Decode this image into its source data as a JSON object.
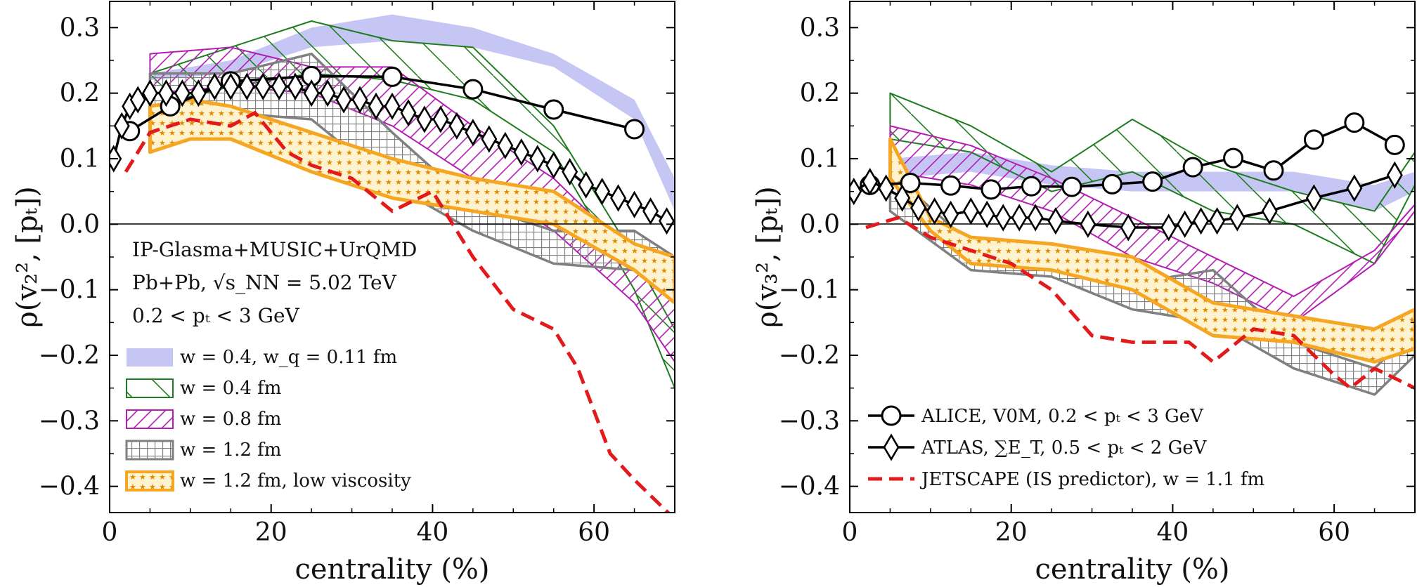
{
  "chart_data": [
    {
      "type": "area",
      "panel": "left",
      "xlabel": "centrality (%)",
      "ylabel": "ρ(v₂², [pₜ])",
      "xlim": [
        0,
        70
      ],
      "ylim": [
        -0.44,
        0.34
      ],
      "xticks": [
        0,
        20,
        40,
        60
      ],
      "yticks": [
        -0.4,
        -0.3,
        -0.2,
        -0.1,
        0.0,
        0.1,
        0.2,
        0.3
      ],
      "annotations": [
        "IP-Glasma+MUSIC+UrQMD",
        "Pb+Pb, √s_NN = 5.02 TeV",
        "0.2 < pₜ < 3 GeV"
      ],
      "legend_position": "lower-left",
      "series": [
        {
          "name": "w = 0.4, w_q = 0.11 fm",
          "kind": "band",
          "color": "#b3b3f2",
          "x": [
            5,
            15,
            25,
            35,
            45,
            55,
            65,
            70
          ],
          "lower": [
            0.22,
            0.23,
            0.27,
            0.28,
            0.27,
            0.24,
            0.16,
            0.02
          ],
          "upper": [
            0.23,
            0.25,
            0.3,
            0.32,
            0.3,
            0.26,
            0.19,
            0.07
          ]
        },
        {
          "name": "w = 0.4 fm",
          "kind": "band",
          "color": "#1e7d1e",
          "x": [
            5,
            15,
            25,
            35,
            45,
            55,
            65,
            70
          ],
          "lower": [
            0.18,
            0.21,
            0.23,
            0.22,
            0.19,
            0.11,
            -0.1,
            -0.25
          ],
          "upper": [
            0.23,
            0.27,
            0.31,
            0.28,
            0.27,
            0.15,
            -0.05,
            -0.16
          ]
        },
        {
          "name": "w = 0.8 fm",
          "kind": "band",
          "color": "#b31db3",
          "x": [
            5,
            15,
            25,
            35,
            45,
            55,
            65,
            70
          ],
          "lower": [
            0.2,
            0.21,
            0.2,
            0.15,
            0.07,
            -0.01,
            -0.12,
            -0.21
          ],
          "upper": [
            0.26,
            0.27,
            0.24,
            0.24,
            0.15,
            0.07,
            -0.05,
            -0.12
          ]
        },
        {
          "name": "w = 1.2 fm",
          "kind": "band",
          "color": "#808080",
          "x": [
            5,
            15,
            25,
            35,
            45,
            55,
            65,
            70
          ],
          "lower": [
            0.18,
            0.17,
            0.16,
            0.06,
            -0.01,
            -0.06,
            -0.07,
            -0.11
          ],
          "upper": [
            0.23,
            0.23,
            0.26,
            0.14,
            0.03,
            -0.01,
            -0.01,
            -0.05
          ]
        },
        {
          "name": "w = 1.2 fm, low viscosity",
          "kind": "band",
          "color": "#f5a623",
          "x": [
            5,
            10,
            15,
            25,
            35,
            45,
            55,
            65,
            70
          ],
          "lower": [
            0.11,
            0.13,
            0.13,
            0.08,
            0.04,
            0.02,
            0.0,
            -0.07,
            -0.12
          ],
          "upper": [
            0.18,
            0.19,
            0.18,
            0.14,
            0.1,
            0.07,
            0.05,
            -0.03,
            -0.05
          ]
        },
        {
          "name": "ALICE, V0M, 0.2 < pₜ < 3 GeV",
          "kind": "line-circle",
          "color": "#000000",
          "x": [
            2.5,
            7.5,
            15,
            25,
            35,
            45,
            55,
            65
          ],
          "y": [
            0.142,
            0.18,
            0.218,
            0.226,
            0.225,
            0.206,
            0.175,
            0.145
          ]
        },
        {
          "name": "ATLAS, ∑E_T, 0.5 < pₜ < 2 GeV",
          "kind": "line-diamond",
          "color": "#000000",
          "x": [
            0.5,
            1.5,
            2.5,
            3.5,
            5,
            7,
            9,
            11,
            13,
            15,
            17,
            19,
            21,
            23,
            25,
            27,
            29,
            31,
            33,
            35,
            37,
            39,
            41,
            43,
            45,
            47,
            49,
            51,
            53,
            55,
            57,
            59,
            61,
            63,
            65,
            67,
            69
          ],
          "y": [
            0.1,
            0.15,
            0.18,
            0.19,
            0.2,
            0.2,
            0.2,
            0.2,
            0.21,
            0.21,
            0.21,
            0.21,
            0.21,
            0.21,
            0.2,
            0.2,
            0.19,
            0.19,
            0.18,
            0.18,
            0.17,
            0.16,
            0.16,
            0.15,
            0.14,
            0.13,
            0.12,
            0.11,
            0.1,
            0.09,
            0.08,
            0.06,
            0.05,
            0.04,
            0.03,
            0.02,
            0.005
          ]
        },
        {
          "name": "JETSCAPE (IS predictor), w = 1.1 fm",
          "kind": "dashed",
          "color": "#e31a1c",
          "x": [
            2,
            5,
            10,
            15,
            18,
            22,
            25,
            30,
            35,
            40,
            45,
            50,
            55,
            58,
            62,
            65,
            70
          ],
          "y": [
            0.08,
            0.14,
            0.16,
            0.15,
            0.17,
            0.11,
            0.09,
            0.07,
            0.02,
            0.05,
            -0.05,
            -0.13,
            -0.16,
            -0.22,
            -0.35,
            -0.39,
            -0.45
          ]
        }
      ]
    },
    {
      "type": "area",
      "panel": "right",
      "xlabel": "centrality (%)",
      "ylabel": "ρ(v₃², [pₜ])",
      "xlim": [
        0,
        70
      ],
      "ylim": [
        -0.44,
        0.34
      ],
      "xticks": [
        0,
        20,
        40,
        60
      ],
      "yticks": [
        -0.4,
        -0.3,
        -0.2,
        -0.1,
        0.0,
        0.1,
        0.2,
        0.3
      ],
      "legend_position": "lower-left",
      "series": [
        {
          "name": "w = 0.4, w_q = 0.11 fm",
          "kind": "band",
          "color": "#b3b3f2",
          "x": [
            5,
            15,
            25,
            35,
            45,
            55,
            65,
            70
          ],
          "lower": [
            0.07,
            0.08,
            0.06,
            0.05,
            0.05,
            0.05,
            0.02,
            0.05
          ],
          "upper": [
            0.1,
            0.11,
            0.09,
            0.08,
            0.08,
            0.08,
            0.06,
            0.08
          ]
        },
        {
          "name": "w = 0.4 fm",
          "kind": "band",
          "color": "#1e7d1e",
          "x": [
            5,
            15,
            25,
            35,
            45,
            55,
            65,
            70
          ],
          "lower": [
            0.13,
            0.11,
            0.05,
            0.08,
            0.02,
            0.0,
            -0.06,
            0.06
          ],
          "upper": [
            0.2,
            0.15,
            0.08,
            0.16,
            0.09,
            0.05,
            0.02,
            0.11
          ]
        },
        {
          "name": "w = 0.8 fm",
          "kind": "band",
          "color": "#b31db3",
          "x": [
            5,
            15,
            25,
            35,
            45,
            55,
            65,
            70
          ],
          "lower": [
            0.08,
            0.06,
            0.02,
            -0.05,
            -0.09,
            -0.15,
            -0.06,
            0.02
          ],
          "upper": [
            0.15,
            0.12,
            0.07,
            0.01,
            -0.05,
            -0.11,
            -0.04,
            0.03
          ]
        },
        {
          "name": "w = 1.2 fm",
          "kind": "band",
          "color": "#808080",
          "x": [
            5,
            15,
            25,
            35,
            45,
            55,
            65,
            70
          ],
          "lower": [
            0.02,
            -0.07,
            -0.08,
            -0.13,
            -0.15,
            -0.22,
            -0.26,
            -0.2
          ],
          "upper": [
            0.08,
            -0.03,
            -0.05,
            -0.09,
            -0.07,
            -0.18,
            -0.22,
            -0.16
          ]
        },
        {
          "name": "w = 1.2 fm, low viscosity",
          "kind": "band",
          "color": "#f5a623",
          "x": [
            5,
            10,
            15,
            25,
            35,
            45,
            55,
            65,
            70
          ],
          "lower": [
            0.07,
            -0.01,
            -0.06,
            -0.07,
            -0.1,
            -0.17,
            -0.18,
            -0.21,
            -0.19
          ],
          "upper": [
            0.13,
            0.01,
            -0.02,
            -0.03,
            -0.05,
            -0.12,
            -0.14,
            -0.16,
            -0.13
          ]
        },
        {
          "name": "ALICE, V0M, 0.2 < pₜ < 3 GeV",
          "kind": "line-circle",
          "color": "#000000",
          "x": [
            2.5,
            7.5,
            12.5,
            17.5,
            22.5,
            27.5,
            32.5,
            37.5,
            42.5,
            47.5,
            52.5,
            57.5,
            62.5,
            67.5
          ],
          "y": [
            0.06,
            0.063,
            0.059,
            0.053,
            0.058,
            0.057,
            0.061,
            0.065,
            0.087,
            0.101,
            0.082,
            0.129,
            0.155,
            0.121
          ]
        },
        {
          "name": "ATLAS, ∑E_T, 0.5 < pₜ < 2 GeV",
          "kind": "line-diamond",
          "color": "#000000",
          "x": [
            0.5,
            2.5,
            4.5,
            6.5,
            8.5,
            10.5,
            12.5,
            15,
            17,
            19,
            21,
            23,
            25.5,
            29.5,
            34.5,
            39.5,
            41.5,
            43.5,
            45.5,
            48,
            52,
            57.5,
            62.5,
            67.5
          ],
          "y": [
            0.05,
            0.065,
            0.055,
            0.04,
            0.025,
            0.02,
            0.015,
            0.02,
            0.015,
            0.01,
            0.01,
            0.01,
            0.005,
            0.0,
            -0.005,
            -0.005,
            0.0,
            0.005,
            0.005,
            0.01,
            0.02,
            0.04,
            0.055,
            0.075
          ]
        },
        {
          "name": "JETSCAPE (IS predictor), w = 1.1 fm",
          "kind": "dashed",
          "color": "#e31a1c",
          "x": [
            2,
            6,
            10,
            15,
            20,
            25,
            30,
            35,
            40,
            42,
            45,
            48,
            50,
            55,
            60,
            62,
            65,
            70
          ],
          "y": [
            -0.005,
            0.01,
            -0.02,
            -0.04,
            -0.06,
            -0.1,
            -0.17,
            -0.18,
            -0.18,
            -0.18,
            -0.21,
            -0.18,
            -0.16,
            -0.17,
            -0.23,
            -0.25,
            -0.22,
            -0.25
          ]
        }
      ]
    }
  ]
}
